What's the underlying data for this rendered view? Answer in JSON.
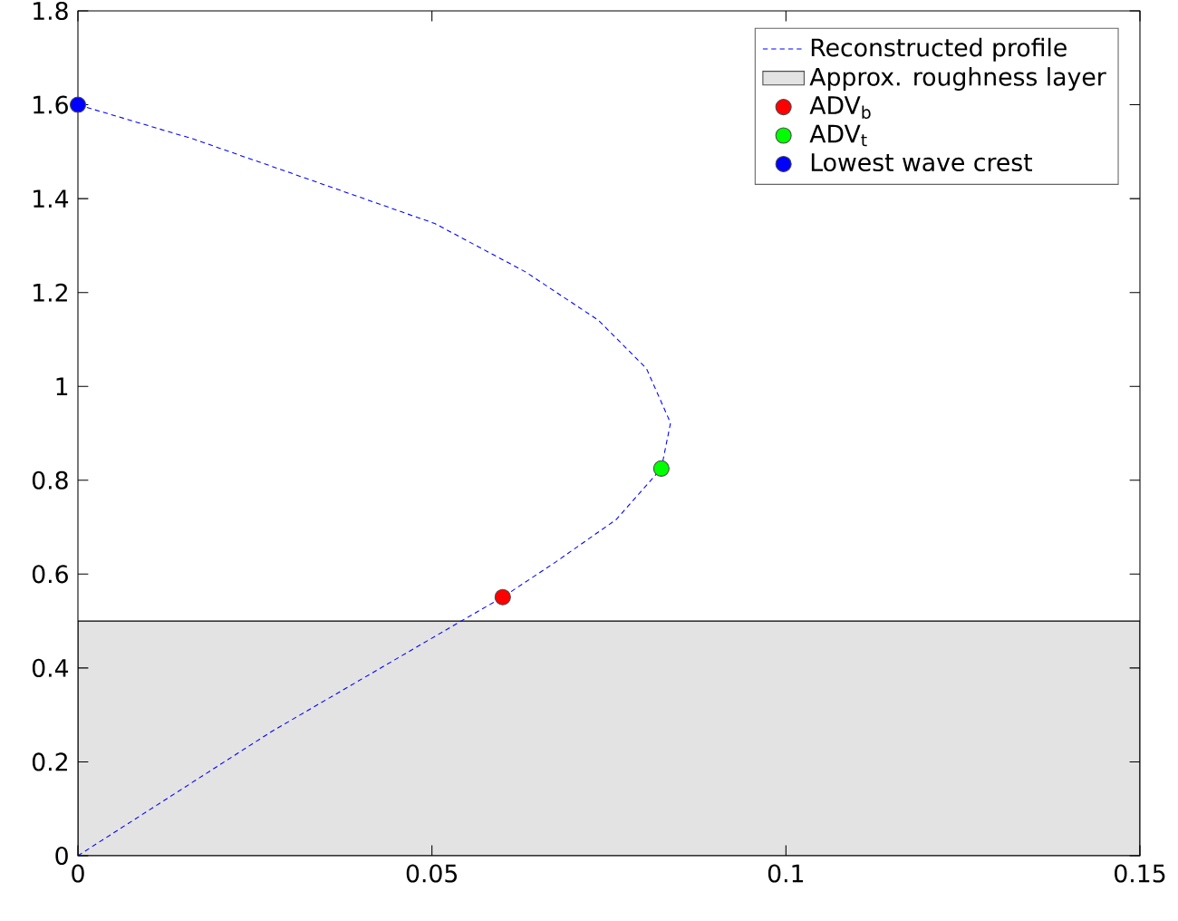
{
  "chart_data": {
    "type": "line",
    "xlim": [
      0,
      0.15
    ],
    "xticks": [
      0,
      0.05,
      0.1,
      0.15
    ],
    "ylim": [
      0,
      1.8
    ],
    "yticks": [
      0,
      0.2,
      0.4,
      0.6,
      0.8,
      1,
      1.2,
      1.4,
      1.6,
      1.8
    ],
    "legend": "top right",
    "bands": [
      {
        "axis": "y",
        "from": 0,
        "to": 0.5,
        "label": "Approx. roughness layer",
        "color": "#e3e3e3"
      }
    ],
    "series": [
      {
        "name": "Reconstructed profile",
        "color": "#0000ff",
        "line_style": "dashed",
        "marker": "none",
        "x": [
          0,
          0.0274,
          0.0538,
          0.06,
          0.0675,
          0.076,
          0.0824,
          0.0837,
          0.0803,
          0.0735,
          0.0632,
          0.0504,
          0.0334,
          0.0163,
          0
        ],
        "values": [
          0,
          0.265,
          0.497,
          0.551,
          0.626,
          0.716,
          0.825,
          0.922,
          1.038,
          1.141,
          1.244,
          1.347,
          1.437,
          1.527,
          1.6
        ]
      },
      {
        "name": "ADV$_{b}$",
        "type": "scatter",
        "color": "#ff0000",
        "marker": "circle",
        "x": [
          0.06
        ],
        "values": [
          0.551
        ]
      },
      {
        "name": "ADV$_{t}$",
        "type": "scatter",
        "color": "#00ff00",
        "marker": "circle",
        "x": [
          0.0824
        ],
        "values": [
          0.825
        ]
      },
      {
        "name": "Lowest wave crest",
        "type": "scatter",
        "color": "#0000ff",
        "marker": "circle",
        "x": [
          0
        ],
        "values": [
          1.6
        ]
      }
    ]
  }
}
